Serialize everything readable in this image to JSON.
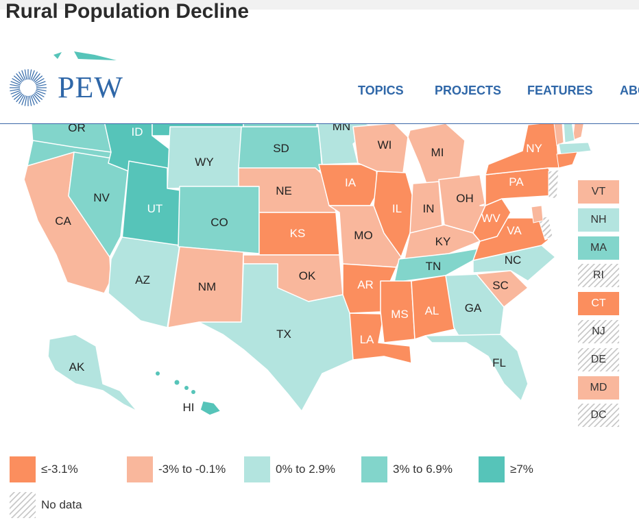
{
  "page_title": "Rural Population Decline",
  "brand": "PEW",
  "nav": [
    "TOPICS",
    "PROJECTS",
    "FEATURES",
    "ABO"
  ],
  "colors": {
    "c1": "#fb8e5e",
    "c2": "#f9b79c",
    "c3": "#b3e4df",
    "c4": "#82d5cb",
    "c5": "#56c4b9",
    "nodata": "hatch",
    "nav_blue": "#2f67a8"
  },
  "legend": [
    {
      "label": "≤-3.1%",
      "class": "c1"
    },
    {
      "label": "-3% to -0.1%",
      "class": "c2"
    },
    {
      "label": "0% to 2.9%",
      "class": "c3"
    },
    {
      "label": "3% to 6.9%",
      "class": "c4"
    },
    {
      "label": "≥7%",
      "class": "c5"
    },
    {
      "label": "No data",
      "class": "nodata"
    }
  ],
  "small_states": [
    {
      "label": "VT",
      "class": "c2"
    },
    {
      "label": "NH",
      "class": "c3"
    },
    {
      "label": "MA",
      "class": "c4"
    },
    {
      "label": "RI",
      "class": "nodata"
    },
    {
      "label": "CT",
      "class": "c1"
    },
    {
      "label": "NJ",
      "class": "nodata"
    },
    {
      "label": "DE",
      "class": "nodata"
    },
    {
      "label": "MD",
      "class": "c2"
    },
    {
      "label": "DC",
      "class": "nodata"
    }
  ],
  "states": {
    "WA": {
      "label": "",
      "class": "c4"
    },
    "OR": {
      "label": "OR",
      "class": "c4"
    },
    "CA": {
      "label": "CA",
      "class": "c2"
    },
    "NV": {
      "label": "NV",
      "class": "c4"
    },
    "ID": {
      "label": "ID",
      "class": "c5"
    },
    "MT": {
      "label": "",
      "class": "c5"
    },
    "WY": {
      "label": "WY",
      "class": "c3"
    },
    "UT": {
      "label": "UT",
      "class": "c5"
    },
    "AZ": {
      "label": "AZ",
      "class": "c3"
    },
    "CO": {
      "label": "CO",
      "class": "c4"
    },
    "NM": {
      "label": "NM",
      "class": "c2"
    },
    "ND": {
      "label": "",
      "class": "c4"
    },
    "SD": {
      "label": "SD",
      "class": "c4"
    },
    "NE": {
      "label": "NE",
      "class": "c2"
    },
    "KS": {
      "label": "KS",
      "class": "c1"
    },
    "OK": {
      "label": "OK",
      "class": "c2"
    },
    "TX": {
      "label": "TX",
      "class": "c3"
    },
    "MN": {
      "label": "MN",
      "class": "c3"
    },
    "IA": {
      "label": "IA",
      "class": "c1"
    },
    "MO": {
      "label": "MO",
      "class": "c2"
    },
    "AR": {
      "label": "AR",
      "class": "c1"
    },
    "LA": {
      "label": "LA",
      "class": "c1"
    },
    "WI": {
      "label": "WI",
      "class": "c2"
    },
    "IL": {
      "label": "IL",
      "class": "c1"
    },
    "MI": {
      "label": "MI",
      "class": "c2"
    },
    "IN": {
      "label": "IN",
      "class": "c2"
    },
    "OH": {
      "label": "OH",
      "class": "c2"
    },
    "KY": {
      "label": "KY",
      "class": "c2"
    },
    "TN": {
      "label": "TN",
      "class": "c4"
    },
    "MS": {
      "label": "MS",
      "class": "c1"
    },
    "AL": {
      "label": "AL",
      "class": "c1"
    },
    "GA": {
      "label": "GA",
      "class": "c3"
    },
    "FL": {
      "label": "FL",
      "class": "c3"
    },
    "SC": {
      "label": "SC",
      "class": "c2"
    },
    "NC": {
      "label": "NC",
      "class": "c3"
    },
    "VA": {
      "label": "VA",
      "class": "c1"
    },
    "WV": {
      "label": "WV",
      "class": "c1"
    },
    "PA": {
      "label": "PA",
      "class": "c1"
    },
    "NY": {
      "label": "NY",
      "class": "c1"
    },
    "ME": {
      "label": "",
      "class": "c2"
    },
    "AK": {
      "label": "AK",
      "class": "c3"
    },
    "HI": {
      "label": "HI",
      "class": "c5"
    }
  }
}
